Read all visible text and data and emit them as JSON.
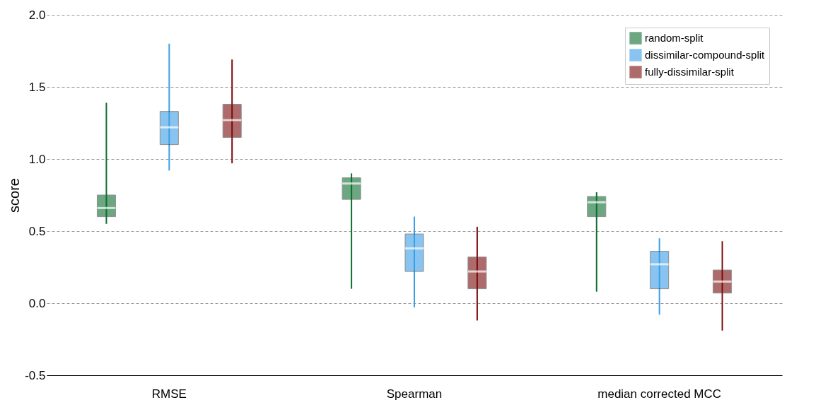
{
  "chart_data": {
    "type": "box",
    "ylabel": "score",
    "categories": [
      "RMSE",
      "Spearman",
      "median corrected MCC"
    ],
    "series": [
      {
        "name": "random-split",
        "color": "#0b6e2e",
        "boxes": [
          {
            "low": 0.55,
            "q1": 0.6,
            "median": 0.66,
            "q3": 0.75,
            "high": 1.39
          },
          {
            "low": 0.1,
            "q1": 0.72,
            "median": 0.83,
            "q3": 0.87,
            "high": 0.9
          },
          {
            "low": 0.08,
            "q1": 0.6,
            "median": 0.7,
            "q3": 0.74,
            "high": 0.77
          }
        ]
      },
      {
        "name": "dissimilar-compound-split",
        "color": "#3a9ee6",
        "boxes": [
          {
            "low": 0.92,
            "q1": 1.1,
            "median": 1.22,
            "q3": 1.33,
            "high": 1.8
          },
          {
            "low": -0.03,
            "q1": 0.22,
            "median": 0.38,
            "q3": 0.48,
            "high": 0.6
          },
          {
            "low": -0.08,
            "q1": 0.1,
            "median": 0.27,
            "q3": 0.36,
            "high": 0.45
          }
        ]
      },
      {
        "name": "fully-dissimilar-split",
        "color": "#7a0a0a",
        "boxes": [
          {
            "low": 0.97,
            "q1": 1.15,
            "median": 1.27,
            "q3": 1.38,
            "high": 1.69
          },
          {
            "low": -0.12,
            "q1": 0.1,
            "median": 0.22,
            "q3": 0.32,
            "high": 0.53
          },
          {
            "low": -0.19,
            "q1": 0.07,
            "median": 0.15,
            "q3": 0.23,
            "high": 0.43
          }
        ]
      }
    ],
    "ylim": [
      -0.5,
      2.0
    ],
    "yticks": [
      {
        "value": -0.5,
        "label": "-0.5"
      },
      {
        "value": 0,
        "label": "0.0"
      },
      {
        "value": 0.5,
        "label": "0.5"
      },
      {
        "value": 1,
        "label": "1.0"
      },
      {
        "value": 1.5,
        "label": "1.5"
      },
      {
        "value": 2,
        "label": "2.0"
      }
    ],
    "grid": "y",
    "legend": "top right"
  }
}
